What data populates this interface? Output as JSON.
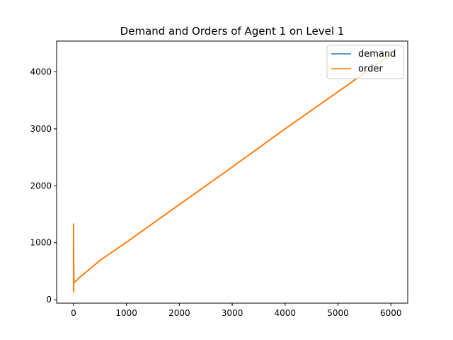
{
  "chart_data": {
    "type": "line",
    "title": "Demand and Orders of Agent 1 on Level 1",
    "xlabel": "",
    "ylabel": "",
    "xlim": [
      -320,
      6318
    ],
    "ylim": [
      -60,
      4540
    ],
    "xticks": [
      0,
      1000,
      2000,
      3000,
      4000,
      5000,
      6000
    ],
    "xtick_labels": [
      "0",
      "1000",
      "2000",
      "3000",
      "4000",
      "5000",
      "6000"
    ],
    "yticks": [
      0,
      1000,
      2000,
      3000,
      4000
    ],
    "ytick_labels": [
      "0",
      "1000",
      "2000",
      "3000",
      "4000"
    ],
    "grid": false,
    "legend_position": "top-right",
    "series": [
      {
        "name": "demand",
        "color": "#1f77b4",
        "x": [
          0,
          2,
          4,
          6,
          8,
          10,
          50,
          100,
          500,
          1000,
          2000,
          3000,
          4000,
          5000,
          6000
        ],
        "y": [
          300,
          680,
          200,
          420,
          320,
          300,
          330,
          380,
          690,
          1010,
          1670,
          2330,
          3000,
          3650,
          4300
        ]
      },
      {
        "name": "order",
        "color": "#ff7f0e",
        "x": [
          0,
          1,
          2,
          3,
          4,
          5,
          6,
          8,
          10,
          50,
          100,
          500,
          1000,
          2000,
          3000,
          4000,
          5000,
          6000
        ],
        "y": [
          150,
          1330,
          140,
          900,
          250,
          600,
          330,
          380,
          310,
          330,
          380,
          690,
          1010,
          1670,
          2330,
          3000,
          3650,
          4310
        ]
      }
    ]
  }
}
